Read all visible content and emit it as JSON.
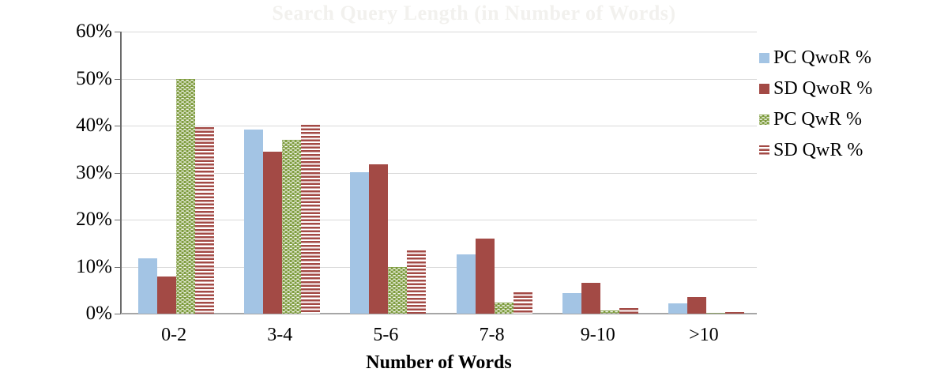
{
  "chart_data": {
    "type": "bar",
    "title_faint": "Search Query Length (in Number of Words)",
    "xlabel": "Number of Words",
    "ylabel": "",
    "categories": [
      "0-2",
      "3-4",
      "5-6",
      "7-8",
      "9-10",
      ">10"
    ],
    "series": [
      {
        "name": "PC QwoR %",
        "style": "solid-blue",
        "values": [
          11.7,
          39.1,
          30.1,
          12.6,
          4.4,
          2.2
        ]
      },
      {
        "name": "SD QwoR %",
        "style": "solid-red",
        "values": [
          7.9,
          34.4,
          31.7,
          16.0,
          6.6,
          3.5
        ]
      },
      {
        "name": "PC QwR %",
        "style": "dotted-green",
        "values": [
          50.0,
          37.0,
          10.0,
          2.4,
          0.6,
          0.1
        ]
      },
      {
        "name": "SD QwR %",
        "style": "striped-red",
        "values": [
          39.7,
          40.1,
          13.4,
          4.5,
          1.2,
          0.3
        ]
      }
    ],
    "y_ticks": [
      "60%",
      "50%",
      "40%",
      "30%",
      "20%",
      "10%",
      "0%"
    ],
    "ylim": [
      0,
      60
    ],
    "y_step": 10,
    "grid": true,
    "legend_position": "right"
  },
  "colors": {
    "bar_blue": "#a3c4e4",
    "bar_red": "#a34a45",
    "bar_green": "#7e9c3e",
    "gridline": "#d9d9d9",
    "axis_left": "#6a6a6a",
    "axis_bottom": "#a6a6a6",
    "faint_title": "#f2f1ee",
    "background": "#ffffff"
  }
}
